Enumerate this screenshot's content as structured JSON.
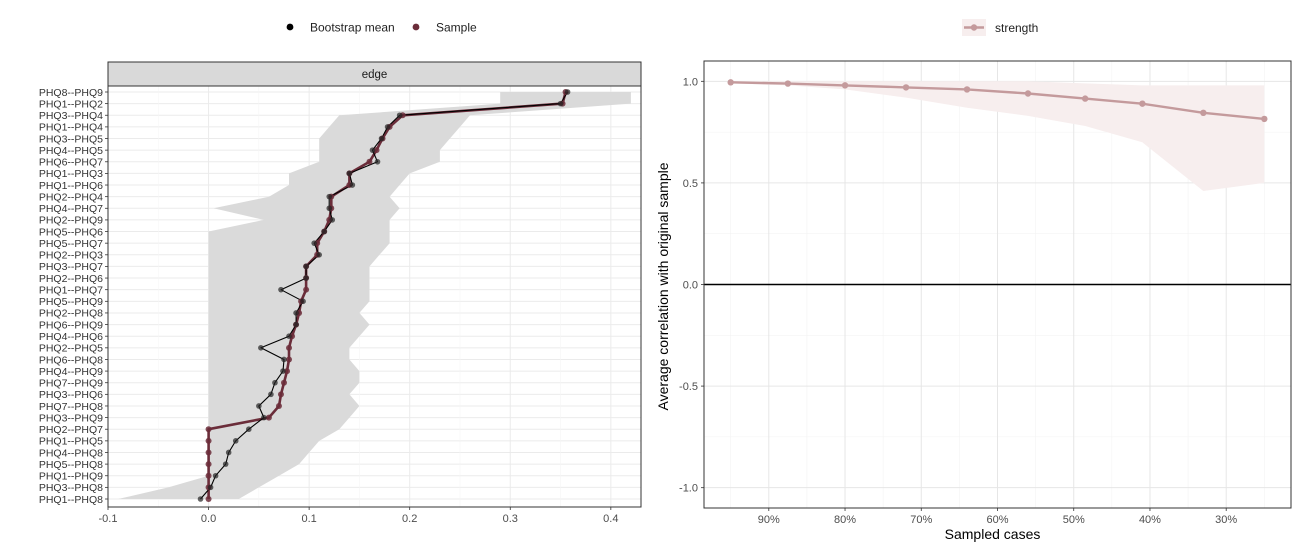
{
  "chart_data": [
    {
      "type": "line",
      "panel_label": "edge",
      "legend": [
        "Bootstrap mean",
        "Sample"
      ],
      "xlim": [
        -0.1,
        0.43
      ],
      "x_ticks": [
        -0.1,
        0.0,
        0.1,
        0.2,
        0.3,
        0.4
      ],
      "x_tick_labels": [
        "-0.1",
        "0.0",
        "0.1",
        "0.2",
        "0.3",
        "0.4"
      ],
      "categories": [
        "PHQ8--PHQ9",
        "PHQ1--PHQ2",
        "PHQ3--PHQ4",
        "PHQ1--PHQ4",
        "PHQ3--PHQ5",
        "PHQ4--PHQ5",
        "PHQ6--PHQ7",
        "PHQ1--PHQ3",
        "PHQ1--PHQ6",
        "PHQ2--PHQ4",
        "PHQ4--PHQ7",
        "PHQ2--PHQ9",
        "PHQ5--PHQ6",
        "PHQ5--PHQ7",
        "PHQ2--PHQ3",
        "PHQ3--PHQ7",
        "PHQ2--PHQ6",
        "PHQ1--PHQ7",
        "PHQ5--PHQ9",
        "PHQ2--PHQ8",
        "PHQ6--PHQ9",
        "PHQ4--PHQ6",
        "PHQ2--PHQ5",
        "PHQ6--PHQ8",
        "PHQ4--PHQ9",
        "PHQ7--PHQ9",
        "PHQ3--PHQ6",
        "PHQ7--PHQ8",
        "PHQ3--PHQ9",
        "PHQ2--PHQ7",
        "PHQ1--PHQ5",
        "PHQ4--PHQ8",
        "PHQ5--PHQ8",
        "PHQ1--PHQ9",
        "PHQ3--PHQ8",
        "PHQ1--PHQ8"
      ],
      "series": [
        {
          "name": "Sample",
          "color": "#6b2d3a",
          "values": [
            0.355,
            0.352,
            0.193,
            0.18,
            0.173,
            0.167,
            0.16,
            0.14,
            0.14,
            0.122,
            0.122,
            0.12,
            0.115,
            0.108,
            0.108,
            0.097,
            0.097,
            0.097,
            0.092,
            0.09,
            0.087,
            0.083,
            0.08,
            0.08,
            0.078,
            0.075,
            0.072,
            0.07,
            0.06,
            0.0,
            0.0,
            0.0,
            0.0,
            0.0,
            0.0,
            0.0
          ]
        },
        {
          "name": "Bootstrap mean",
          "color": "#000000",
          "values": [
            0.357,
            0.35,
            0.19,
            0.178,
            0.172,
            0.163,
            0.168,
            0.14,
            0.143,
            0.12,
            0.12,
            0.123,
            0.115,
            0.105,
            0.11,
            0.097,
            0.097,
            0.072,
            0.094,
            0.087,
            0.087,
            0.08,
            0.052,
            0.075,
            0.074,
            0.066,
            0.062,
            0.05,
            0.055,
            0.04,
            0.027,
            0.02,
            0.017,
            0.007,
            0.002,
            -0.008
          ]
        }
      ],
      "ci_lower": [
        0.29,
        0.29,
        0.13,
        0.12,
        0.11,
        0.11,
        0.11,
        0.08,
        0.08,
        0.06,
        0.005,
        0.055,
        0.0,
        0.0,
        0.0,
        0.0,
        0.0,
        0.0,
        0.0,
        0.0,
        0.0,
        0.0,
        0.0,
        0.0,
        0.0,
        0.0,
        0.0,
        0.0,
        0.0,
        0.0,
        0.0,
        0.0,
        0.0,
        0.0,
        -0.04,
        -0.09
      ],
      "ci_upper": [
        0.42,
        0.42,
        0.26,
        0.25,
        0.24,
        0.23,
        0.23,
        0.2,
        0.19,
        0.18,
        0.19,
        0.18,
        0.18,
        0.18,
        0.17,
        0.16,
        0.16,
        0.16,
        0.16,
        0.15,
        0.16,
        0.15,
        0.14,
        0.14,
        0.15,
        0.15,
        0.14,
        0.15,
        0.14,
        0.13,
        0.11,
        0.1,
        0.09,
        0.07,
        0.05,
        0.03
      ],
      "ci_color": "#dadada",
      "grid": true
    },
    {
      "type": "line",
      "legend": [
        "strength"
      ],
      "xlabel": "Sampled cases",
      "ylabel": "Average correlation with original sample",
      "x": [
        95,
        87.5,
        80,
        72,
        64,
        56,
        48.5,
        41,
        33,
        25
      ],
      "x_ticks": [
        90,
        80,
        70,
        60,
        50,
        40,
        30
      ],
      "x_tick_labels": [
        "90%",
        "80%",
        "70%",
        "60%",
        "50%",
        "40%",
        "30%"
      ],
      "xlim": [
        98.5,
        21.5
      ],
      "ylim": [
        -1.1,
        1.1
      ],
      "y_ticks": [
        1.0,
        0.5,
        0.0,
        -0.5,
        -1.0
      ],
      "y_tick_labels": [
        "1.0",
        "0.5",
        "0.0",
        "-0.5",
        "-1.0"
      ],
      "series": [
        {
          "name": "strength",
          "color": "#c49a9c",
          "values": [
            0.995,
            0.989,
            0.98,
            0.97,
            0.96,
            0.94,
            0.915,
            0.89,
            0.845,
            0.815
          ]
        }
      ],
      "ci_lower": [
        0.99,
        0.98,
        0.96,
        0.92,
        0.87,
        0.83,
        0.78,
        0.7,
        0.46,
        0.5
      ],
      "ci_upper": [
        1.0,
        1.0,
        1.0,
        1.0,
        1.0,
        1.0,
        0.99,
        0.98,
        0.98,
        0.98
      ],
      "ci_color": "#f7eeee",
      "hline": 0.0,
      "grid": true
    }
  ]
}
